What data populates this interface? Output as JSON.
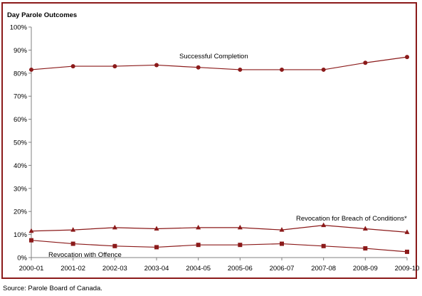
{
  "chart_data": {
    "type": "line",
    "title": "Day Parole Outcomes",
    "categories": [
      "2000-01",
      "2001-02",
      "2002-03",
      "2003-04",
      "2004-05",
      "2005-06",
      "2006-07",
      "2007-08",
      "2008-09",
      "2009-10"
    ],
    "ylim": [
      0,
      100
    ],
    "y_ticks": [
      "0%",
      "10%",
      "20%",
      "30%",
      "40%",
      "50%",
      "60%",
      "70%",
      "80%",
      "90%",
      "100%"
    ],
    "grid": false,
    "series": [
      {
        "name": "Successful Completion",
        "marker": "circle",
        "values": [
          81.5,
          83,
          83,
          83.5,
          82.5,
          81.5,
          81.5,
          81.5,
          84.5,
          87
        ]
      },
      {
        "name": "Revocation for Breach of Conditions*",
        "marker": "triangle",
        "values": [
          11.5,
          12,
          13,
          12.5,
          13,
          13,
          12,
          14,
          12.5,
          11
        ]
      },
      {
        "name": "Revocation with Offence",
        "marker": "square",
        "values": [
          7.5,
          6,
          5,
          4.5,
          5.5,
          5.5,
          6,
          5,
          4,
          2.5
        ]
      }
    ]
  },
  "colors": {
    "series": "#8B1A1A",
    "frame": "#8B1A1A",
    "axis": "#808080"
  },
  "source": "Source:  Parole Board of Canada."
}
